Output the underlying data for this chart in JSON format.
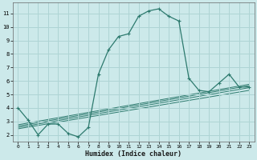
{
  "xlabel": "Humidex (Indice chaleur)",
  "bg_color": "#cce9ea",
  "grid_color": "#aed4d4",
  "line_color": "#2d7a6e",
  "xlim": [
    -0.5,
    23.5
  ],
  "ylim": [
    1.5,
    11.8
  ],
  "xticks": [
    0,
    1,
    2,
    3,
    4,
    5,
    6,
    7,
    8,
    9,
    10,
    11,
    12,
    13,
    14,
    15,
    16,
    17,
    18,
    19,
    20,
    21,
    22,
    23
  ],
  "yticks": [
    2,
    3,
    4,
    5,
    6,
    7,
    8,
    9,
    10,
    11
  ],
  "main_x": [
    0,
    1,
    2,
    3,
    4,
    5,
    6,
    7,
    8,
    9,
    10,
    11,
    12,
    13,
    14,
    15,
    16,
    17,
    18,
    19,
    20,
    21,
    22,
    23
  ],
  "main_y": [
    4.0,
    3.1,
    2.0,
    2.8,
    2.8,
    2.1,
    1.85,
    2.55,
    6.5,
    8.3,
    9.3,
    9.5,
    10.8,
    11.2,
    11.35,
    10.8,
    10.45,
    6.2,
    5.3,
    5.2,
    5.85,
    6.5,
    5.55,
    5.55
  ],
  "trend1_x": [
    0,
    23
  ],
  "trend1_y": [
    2.55,
    5.5
  ],
  "trend2_x": [
    0,
    23
  ],
  "trend2_y": [
    2.65,
    5.65
  ],
  "trend3_x": [
    0,
    23
  ],
  "trend3_y": [
    2.75,
    5.75
  ],
  "trend4_x": [
    0,
    23
  ],
  "trend4_y": [
    2.45,
    5.3
  ]
}
